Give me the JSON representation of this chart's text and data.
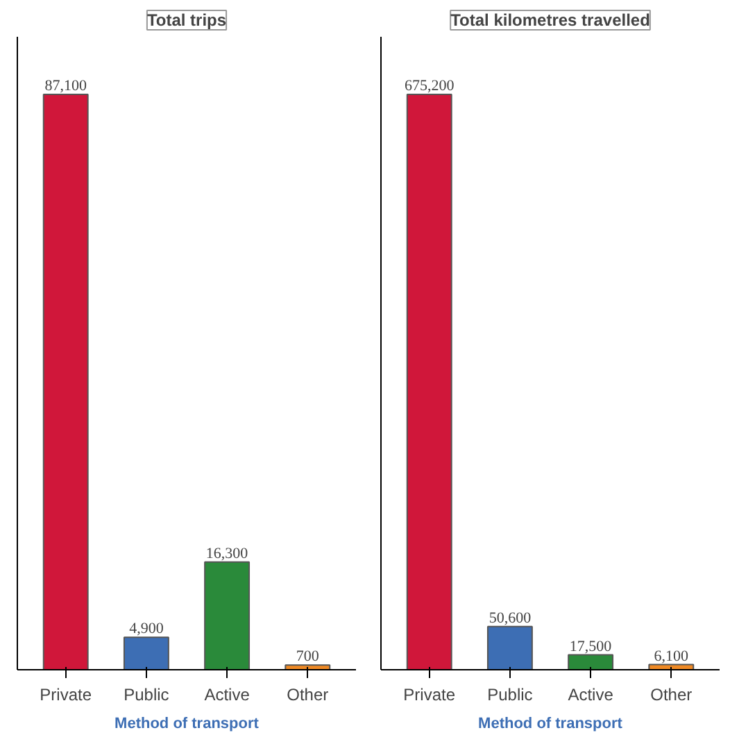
{
  "chart_data": [
    {
      "type": "bar",
      "title": "Total trips",
      "xlabel": "Method of transport",
      "categories": [
        "Private",
        "Public",
        "Active",
        "Other"
      ],
      "values": [
        87100,
        4900,
        16300,
        700
      ],
      "colors": [
        "#d0173a",
        "#3d6eb4",
        "#2a8a3a",
        "#f08a24"
      ],
      "value_labels": [
        "87,100",
        "4,900",
        "16,300",
        "700"
      ],
      "tick_labels": "x",
      "grid": false
    },
    {
      "type": "bar",
      "title": "Total kilometres travelled",
      "xlabel": "Method of transport",
      "categories": [
        "Private",
        "Public",
        "Active",
        "Other"
      ],
      "values": [
        675200,
        50600,
        17500,
        6100
      ],
      "colors": [
        "#d0173a",
        "#3d6eb4",
        "#2a8a3a",
        "#f08a24"
      ],
      "value_labels": [
        "675,200",
        "50,600",
        "17,500",
        "6,100"
      ],
      "tick_labels": "x",
      "grid": false
    }
  ]
}
